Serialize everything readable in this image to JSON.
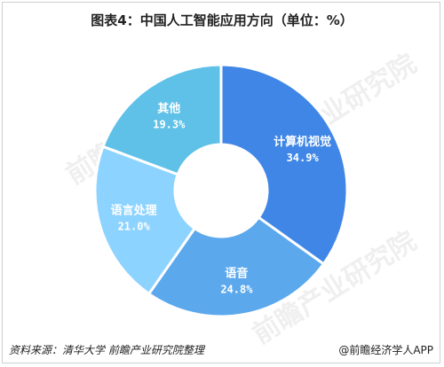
{
  "title": "图表4：中国人工智能应用方向（单位：%）",
  "watermark_text": "前瞻产业研究院",
  "footer": {
    "source": "资料来源：清华大学 前瞻产业研究院整理",
    "copyright": "@前瞻经济学人APP"
  },
  "chart_data": {
    "type": "pie",
    "variant": "donut",
    "title": "图表4：中国人工智能应用方向（单位：%）",
    "slices": [
      {
        "label": "计算机视觉",
        "value": 34.9,
        "display": "34.9%",
        "color": "#3f86e6"
      },
      {
        "label": "语音",
        "value": 24.8,
        "display": "24.8%",
        "color": "#5ba8ec"
      },
      {
        "label": "语言处理",
        "value": 21.0,
        "display": "21.0%",
        "color": "#8dd3ff"
      },
      {
        "label": "其他",
        "value": 19.3,
        "display": "19.3%",
        "color": "#5fc1e8"
      }
    ]
  }
}
